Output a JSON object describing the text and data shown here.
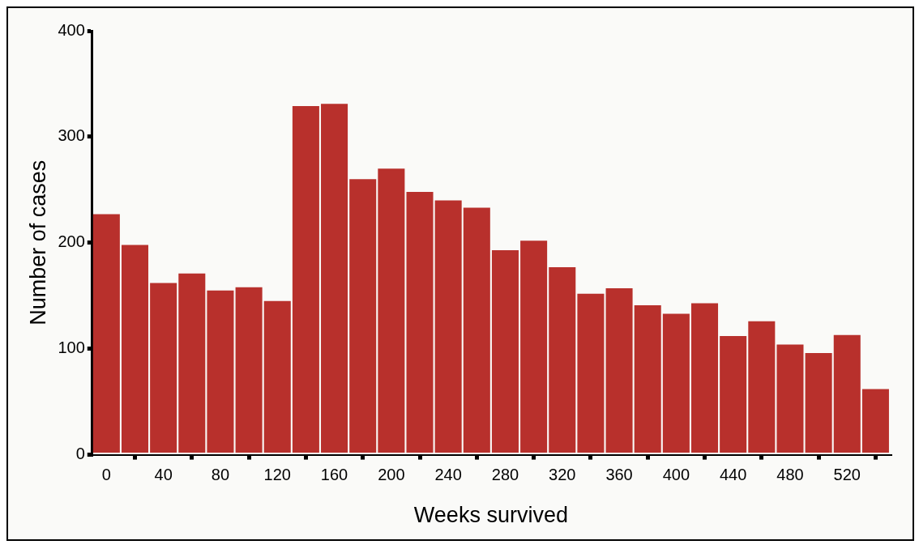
{
  "chart_data": {
    "type": "histogram",
    "xlabel": "Weeks survived",
    "ylabel": "Number of cases",
    "bins": [
      -10,
      10,
      30,
      50,
      70,
      90,
      110,
      130,
      150,
      170,
      190,
      210,
      230,
      250,
      270,
      290,
      310,
      330,
      350,
      370,
      390,
      410,
      430,
      450,
      470,
      490,
      510,
      530,
      550
    ],
    "values": [
      227,
      198,
      162,
      171,
      155,
      158,
      145,
      329,
      331,
      260,
      270,
      248,
      240,
      233,
      193,
      202,
      177,
      152,
      157,
      141,
      133,
      143,
      112,
      126,
      104,
      96,
      113,
      62
    ],
    "color": "#b8302c",
    "xlim": [
      -10,
      550
    ],
    "xticks": [
      0,
      40,
      80,
      120,
      160,
      200,
      240,
      280,
      320,
      360,
      400,
      440,
      480,
      520
    ],
    "ylim": [
      0,
      400
    ],
    "yticks": [
      0,
      100,
      200,
      300,
      400
    ],
    "grid": false
  }
}
